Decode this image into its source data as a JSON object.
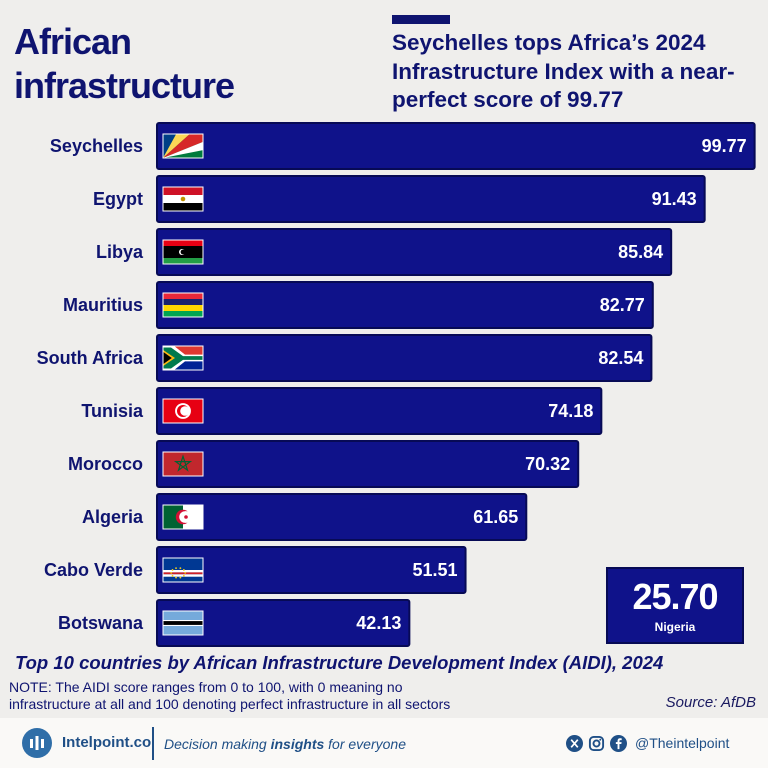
{
  "header": {
    "title": "African infrastructure",
    "subtitle": "Seychelles tops Africa’s 2024 Infrastructure Index with a near-perfect score of 99.77"
  },
  "colors": {
    "navy": "#0f1470",
    "bar": "#0f128a",
    "bar_border": "#070a55",
    "footer_blue": "#1f4f86"
  },
  "chart_data": {
    "type": "bar",
    "orientation": "horizontal",
    "title": "Top 10 countries by African Infrastructure Development Index (AIDI), 2024",
    "categories": [
      "Seychelles",
      "Egypt",
      "Libya",
      "Mauritius",
      "South Africa",
      "Tunisia",
      "Morocco",
      "Algeria",
      "Cabo Verde",
      "Botswana"
    ],
    "values": [
      99.77,
      91.43,
      85.84,
      82.77,
      82.54,
      74.18,
      70.32,
      61.65,
      51.51,
      42.13
    ],
    "value_labels": [
      "99.77",
      "91.43",
      "85.84",
      "82.77",
      "82.54",
      "74.18",
      "70.32",
      "61.65",
      "51.51",
      "42.13"
    ],
    "flags": [
      "seychelles",
      "egypt",
      "libya",
      "mauritius",
      "south-africa",
      "tunisia",
      "morocco",
      "algeria",
      "cabo-verde",
      "botswana"
    ],
    "xlim": [
      0,
      100
    ],
    "xlabel": "",
    "ylabel": "",
    "callout": {
      "value": "25.70",
      "label": "Nigeria"
    }
  },
  "caption": "Top 10 countries by African Infrastructure Development Index (AIDI), 2024",
  "note": "NOTE: The AIDI score ranges from 0 to 100, with 0 meaning no infrastructure at all and 100 denoting perfect infrastructure in all sectors",
  "source": "Source: AfDB",
  "footer": {
    "brand": "Intelpoint.co",
    "tagline_before": "Decision making ",
    "tagline_bold": "insights",
    "tagline_after": " for everyone",
    "social_icons": [
      "x-icon",
      "instagram-icon",
      "facebook-icon"
    ],
    "handle": "@Theintelpoint"
  }
}
